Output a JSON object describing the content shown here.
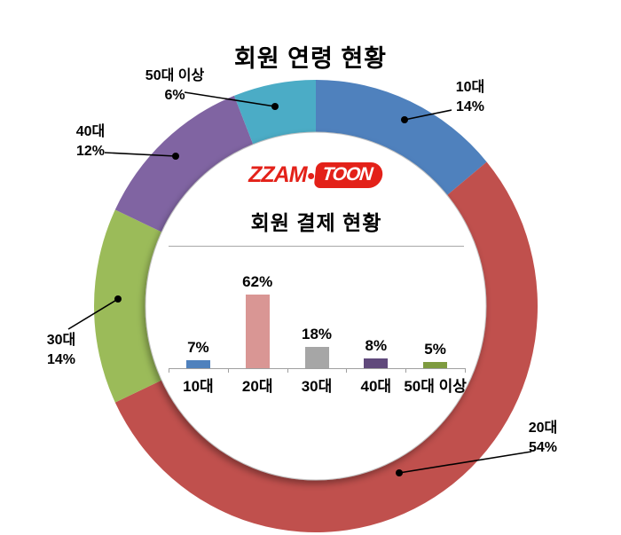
{
  "page": {
    "background": "#ffffff"
  },
  "logo": {
    "text_left": "ZZAM",
    "separator_icon": "dot",
    "text_right": "TOON",
    "color": "#e32119"
  },
  "chart_data": [
    {
      "type": "donut",
      "title": "회원 연령 현황",
      "unit": "%",
      "direction": "clockwise",
      "start_angle_deg": 0,
      "legend_position": "callout-labels",
      "segments": [
        {
          "label": "10대",
          "value": 14,
          "value_label": "14%",
          "color": "#4F81BD"
        },
        {
          "label": "20대",
          "value": 54,
          "value_label": "54%",
          "color": "#C0504D"
        },
        {
          "label": "30대",
          "value": 14,
          "value_label": "14%",
          "color": "#9BBB59"
        },
        {
          "label": "40대",
          "value": 12,
          "value_label": "12%",
          "color": "#8064A2"
        },
        {
          "label": "50대 이상",
          "value": 6,
          "value_label": "6%",
          "color": "#4BACC6"
        }
      ],
      "callout_line_color": "#000000",
      "inner_disc_color": "#ffffff"
    },
    {
      "type": "bar",
      "title": "회원 결제 현황",
      "categories": [
        "10대",
        "20대",
        "30대",
        "40대",
        "50대 이상"
      ],
      "values": [
        7,
        62,
        18,
        8,
        5
      ],
      "value_labels": [
        "7%",
        "62%",
        "18%",
        "8%",
        "5%"
      ],
      "colors": [
        "#4F81BD",
        "#D99694",
        "#A6A6A6",
        "#60497B",
        "#7E9B3F"
      ],
      "xlabel": "",
      "ylabel": "",
      "ylim": [
        0,
        70
      ],
      "grid": false,
      "axis_color": "#9f9f9f"
    }
  ]
}
